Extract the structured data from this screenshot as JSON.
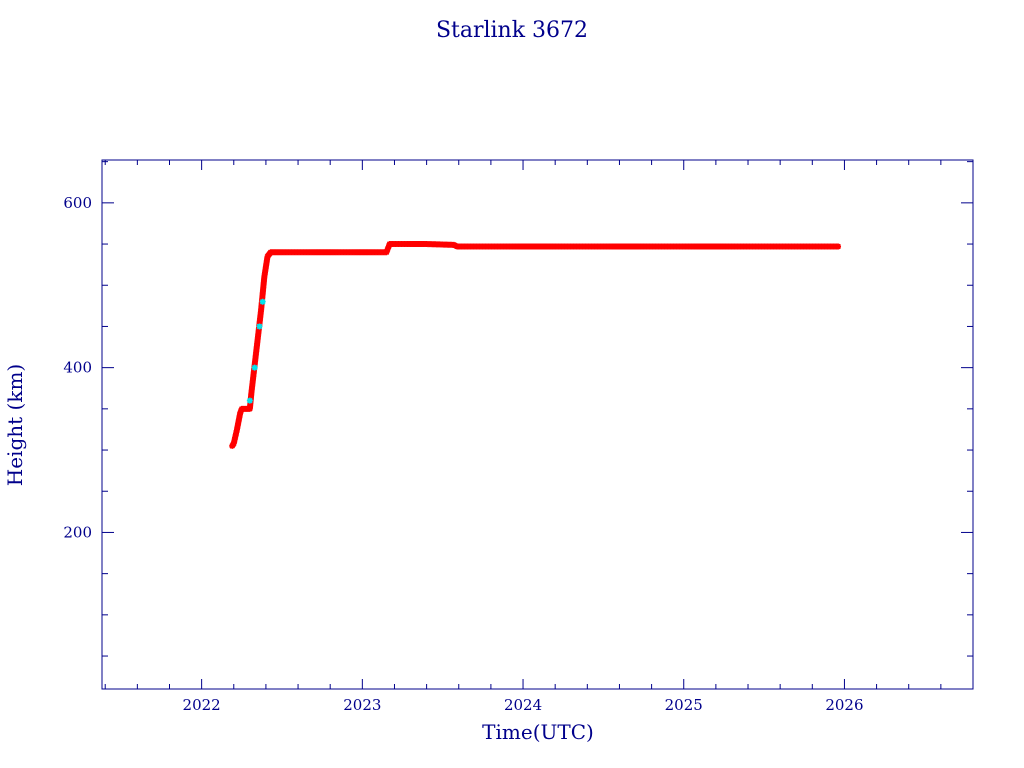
{
  "chart_data": {
    "type": "scatter",
    "title": "Starlink 3672",
    "xlabel": "Time(UTC)",
    "ylabel": "Height (km)",
    "xlim": [
      2021.38,
      2026.8
    ],
    "ylim": [
      10,
      652
    ],
    "x_ticks": [
      2022,
      2023,
      2024,
      2025,
      2026
    ],
    "y_ticks": [
      200,
      400,
      600
    ],
    "x_minor_step": 0.2,
    "y_minor_step": 50,
    "grid": false,
    "colors": {
      "axis": "#00008b",
      "primary": "#ff0000",
      "secondary": "#00e5ee"
    },
    "series": [
      {
        "color": "#ff0000",
        "marker": "star",
        "points": [
          [
            2022.19,
            305
          ],
          [
            2022.2,
            308
          ],
          [
            2022.22,
            325
          ],
          [
            2022.24,
            345
          ],
          [
            2022.25,
            350
          ],
          [
            2022.3,
            350
          ],
          [
            2022.31,
            370
          ],
          [
            2022.34,
            420
          ],
          [
            2022.37,
            470
          ],
          [
            2022.39,
            510
          ],
          [
            2022.41,
            535
          ],
          [
            2022.43,
            540
          ],
          [
            2022.8,
            540
          ],
          [
            2023.15,
            540
          ],
          [
            2023.17,
            550
          ],
          [
            2023.4,
            550
          ],
          [
            2023.57,
            549
          ],
          [
            2023.59,
            547
          ],
          [
            2024.5,
            547
          ],
          [
            2025.4,
            547
          ],
          [
            2025.96,
            547
          ]
        ]
      },
      {
        "color": "#00e5ee",
        "marker": "star",
        "points": [
          [
            2022.3,
            360
          ],
          [
            2022.33,
            400
          ],
          [
            2022.36,
            450
          ],
          [
            2022.38,
            480
          ]
        ]
      }
    ]
  }
}
